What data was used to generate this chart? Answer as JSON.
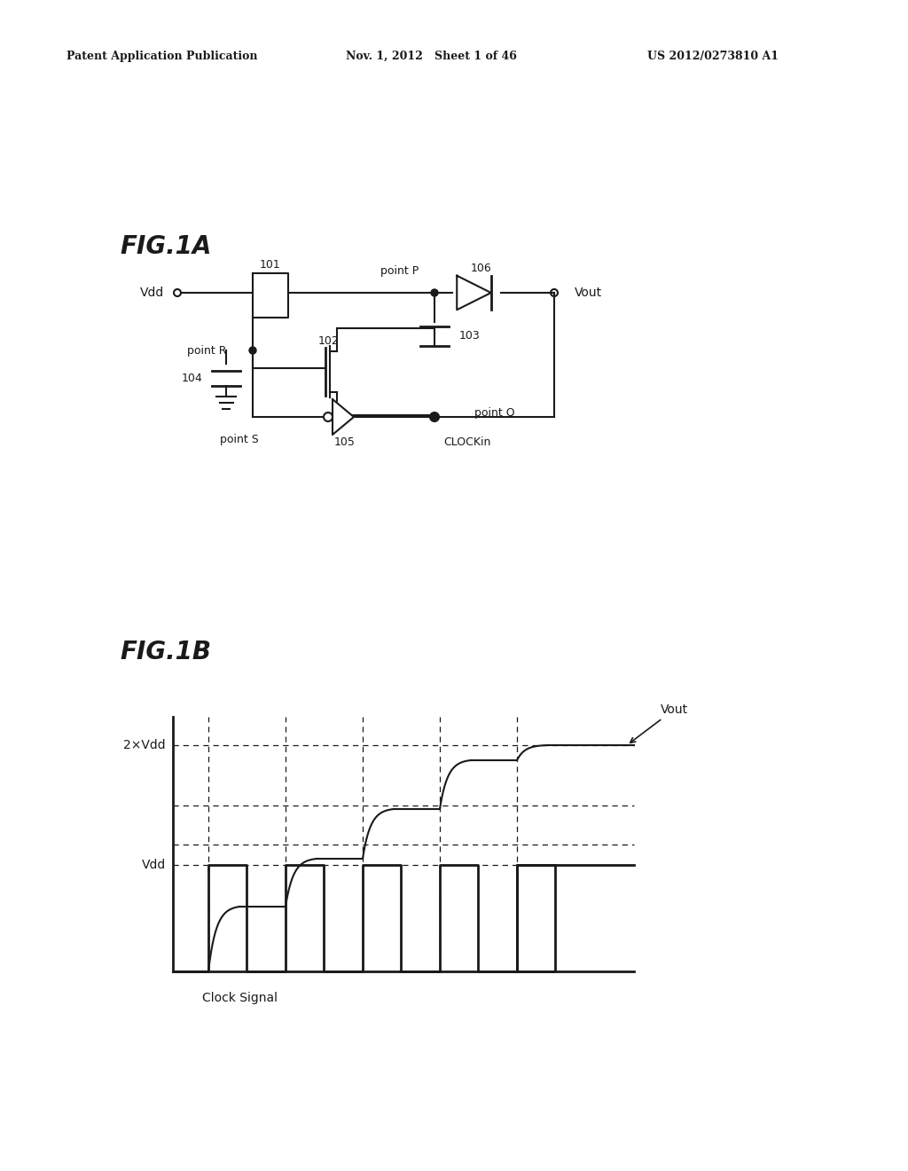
{
  "bg_color": "#ffffff",
  "header_left": "Patent Application Publication",
  "header_mid": "Nov. 1, 2012   Sheet 1 of 46",
  "header_right": "US 2012/0273810 A1",
  "fig1a_label": "FIG.1A",
  "fig1b_label": "FIG.1B",
  "labels": {
    "vdd": "Vdd",
    "vout": "Vout",
    "point_p": "point P",
    "point_r": "point R",
    "point_s": "point S",
    "point_q": "point Q",
    "clock_in": "CLOCKin",
    "n101": "101",
    "n102": "102",
    "n103": "103",
    "n104": "104",
    "n105": "105",
    "n106": "106",
    "two_vdd": "2×Vdd",
    "vdd_label": "Vdd",
    "clock_signal": "Clock Signal",
    "vout_b": "Vout"
  }
}
